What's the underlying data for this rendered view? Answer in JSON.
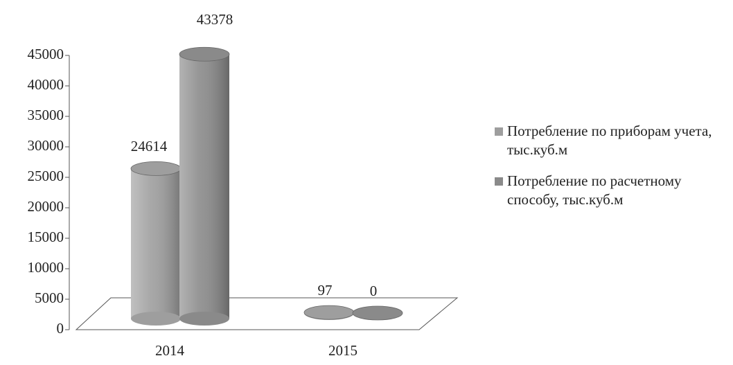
{
  "chart_data": {
    "type": "bar3d",
    "categories": [
      "2014",
      "2015"
    ],
    "series": [
      {
        "name": "Потребление по приборам учета, тыс.куб.м",
        "color": "#9e9e9e",
        "values": [
          24614,
          97
        ]
      },
      {
        "name": "Потребление по расчетному способу, тыс.куб.м",
        "color": "#8a8a8a",
        "values": [
          43378,
          0
        ]
      }
    ],
    "ylim": [
      0,
      45000
    ],
    "yticks": [
      0,
      5000,
      10000,
      15000,
      20000,
      25000,
      30000,
      35000,
      40000,
      45000
    ]
  }
}
